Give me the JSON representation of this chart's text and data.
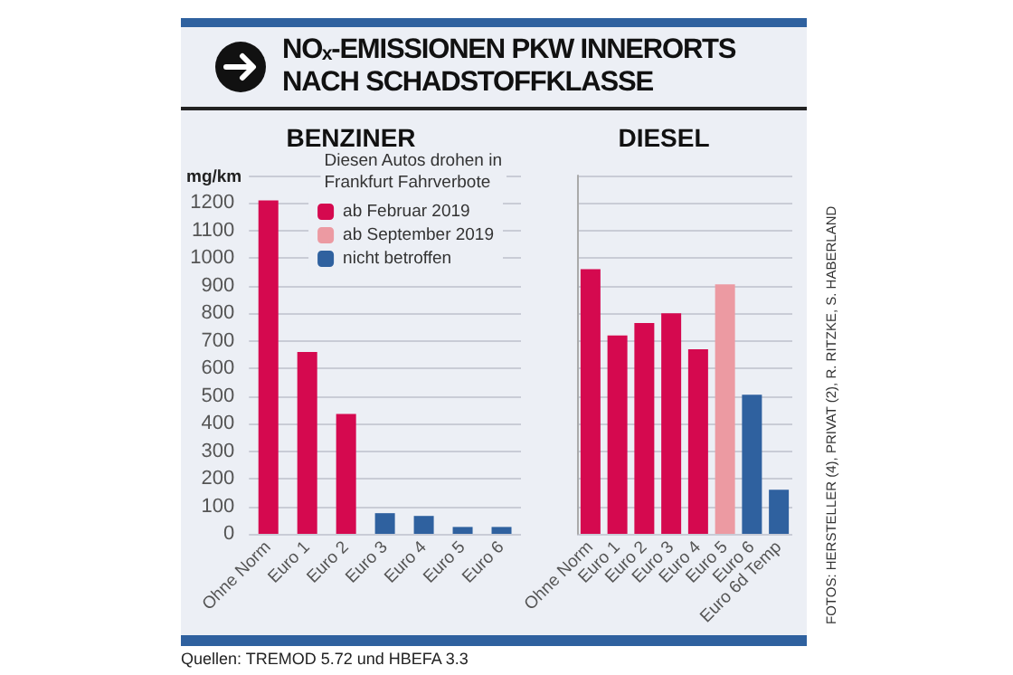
{
  "chart_data": [
    {
      "type": "bar",
      "title": "NOₓ-EMISSIONEN PKW INNERORTS NACH SCHADSTOFFKLASSE",
      "subtitle": "BENZINER",
      "ylabel": "mg/km",
      "legend_title": "Diesen Autos drohen in Frankfurt Fahrverbote",
      "legend": "top right",
      "grid": "y",
      "categories": [
        "Ohne Norm",
        "Euro 1",
        "Euro 2",
        "Euro 3",
        "Euro 4",
        "Euro 5",
        "Euro 6"
      ],
      "series": [
        {
          "name": "ab Februar 2019",
          "color": "#d5094f",
          "values": [
            1210,
            660,
            435,
            null,
            null,
            null,
            null
          ]
        },
        {
          "name": "ab September 2019",
          "color": "#ec9aa2",
          "values": [
            null,
            null,
            null,
            null,
            null,
            null,
            null
          ]
        },
        {
          "name": "nicht betroffen",
          "color": "#2f619f",
          "values": [
            null,
            null,
            null,
            75,
            65,
            25,
            25
          ]
        }
      ],
      "ylim": [
        0,
        1300
      ],
      "yticks": [
        0,
        100,
        200,
        300,
        400,
        500,
        600,
        700,
        800,
        900,
        1000,
        1100,
        1200,
        {
          "value": 1300,
          "label": null
        }
      ]
    },
    {
      "type": "bar",
      "title": "DIESEL",
      "grid": "y",
      "tick_labels": "x",
      "categories": [
        "Ohne Norm",
        "Euro 1",
        "Euro 2",
        "Euro 3",
        "Euro 4",
        "Euro 5",
        "Euro 6",
        "Euro 6d Temp"
      ],
      "series": [
        {
          "color": "#d5094f",
          "values": [
            960,
            720,
            765,
            800,
            670,
            null,
            null,
            null
          ]
        },
        {
          "color": "#ec9aa2",
          "values": [
            null,
            null,
            null,
            null,
            null,
            905,
            null,
            null
          ]
        },
        {
          "color": "#2f619f",
          "values": [
            null,
            null,
            null,
            null,
            null,
            null,
            505,
            160
          ]
        }
      ],
      "ylim": [
        0,
        1300
      ],
      "yticks": [
        0,
        100,
        200,
        300,
        400,
        500,
        600,
        700,
        800,
        900,
        1000,
        1100,
        1200,
        {
          "value": 1300,
          "label": null
        }
      ],
      "annotations": [
        "Quellen: TREMOD 5.72 und HBEFA 3.3",
        "FOTOS: HERSTELLER (4), PRIVAT (2), R. RITZKE, S. HABERLAND"
      ]
    }
  ]
}
